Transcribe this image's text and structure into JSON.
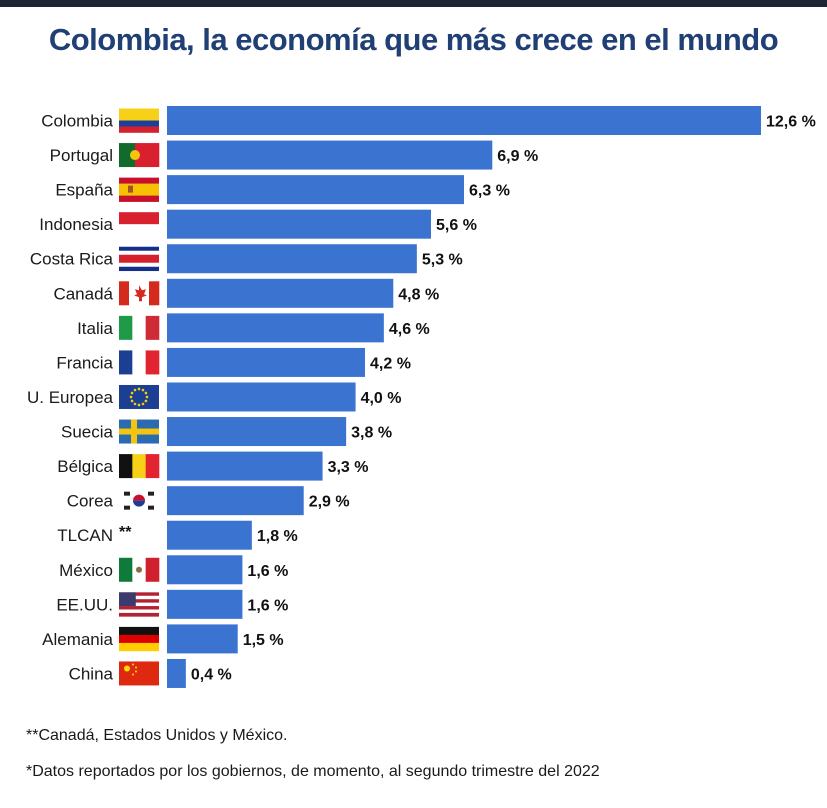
{
  "chart_data": {
    "type": "bar",
    "orientation": "horizontal",
    "title": "Colombia, la economía que más crece en el mundo",
    "categories": [
      "Colombia",
      "Portugal",
      "España",
      "Indonesia",
      "Costa Rica",
      "Canadá",
      "Italia",
      "Francia",
      "U. Europea",
      "Suecia",
      "Bélgica",
      "Corea",
      "TLCAN",
      "México",
      "EE.UU.",
      "Alemania",
      "China"
    ],
    "values": [
      12.6,
      6.9,
      6.3,
      5.6,
      5.3,
      4.8,
      4.6,
      4.2,
      4.0,
      3.8,
      3.3,
      2.9,
      1.8,
      1.6,
      1.6,
      1.5,
      0.4
    ],
    "value_labels": [
      "12,6 %",
      "6,9 %",
      "6,3 %",
      "5,6 %",
      "5,3 %",
      "4,8 %",
      "4,6 %",
      "4,2 %",
      "4,0 %",
      "3,8 %",
      "3,3 %",
      "2,9 %",
      "1,8 %",
      "1,6 %",
      "1,6 %",
      "1,5 %",
      "0,4 %"
    ],
    "flags": [
      "colombia",
      "portugal",
      "spain",
      "indonesia",
      "costa-rica",
      "canada",
      "italy",
      "france",
      "eu",
      "sweden",
      "belgium",
      "korea",
      "tlcan-asterisks",
      "mexico",
      "usa",
      "germany",
      "china"
    ],
    "tlcan_marker": "**",
    "bar_color": "#3a74d0",
    "xlim": [
      0,
      12.6
    ],
    "legend": "none",
    "grid": false
  },
  "footnotes": {
    "line1": "**Canadá, Estados Unidos y México.",
    "line2": "*Datos reportados por los gobiernos, de momento, al segundo trimestre del 2022"
  },
  "colors": {
    "title": "#1f3f75",
    "top_bar": "#1f2633"
  }
}
